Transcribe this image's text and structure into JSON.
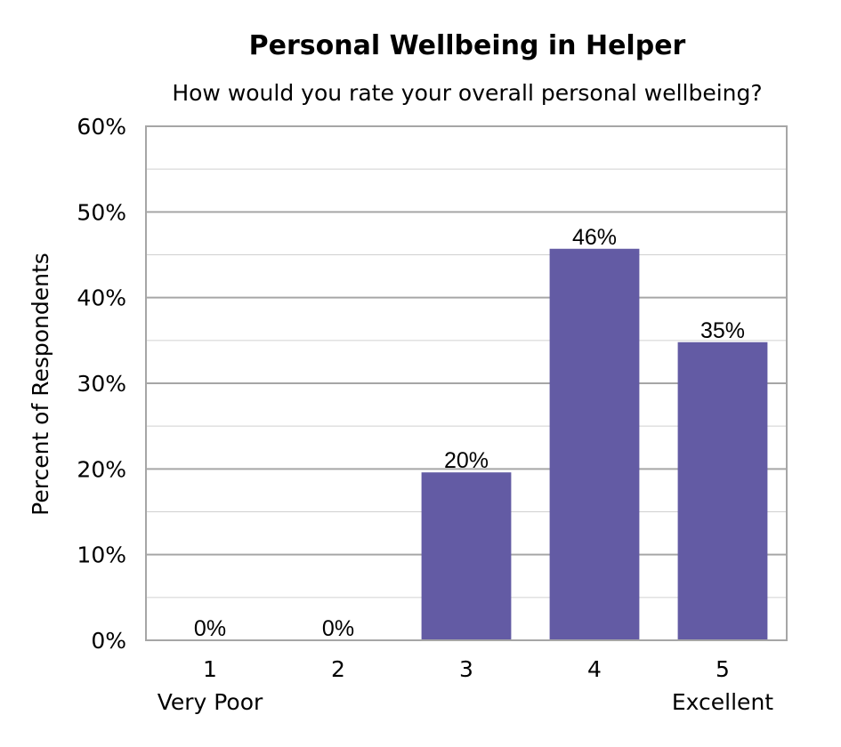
{
  "chart_data": {
    "type": "bar",
    "title": "Personal Wellbeing in Helper",
    "subtitle": "How would you rate your overall personal wellbeing?",
    "ylabel": "Percent of Respondents",
    "xlabel": "",
    "categories": [
      "1",
      "2",
      "3",
      "4",
      "5"
    ],
    "category_sublabels": [
      "Very Poor",
      "",
      "",
      "",
      "Excellent"
    ],
    "values": [
      0,
      0,
      20,
      46,
      35
    ],
    "bar_values_precise": [
      0,
      0,
      19.6,
      45.7,
      34.8
    ],
    "data_labels": [
      "0%",
      "0%",
      "20%",
      "46%",
      "35%"
    ],
    "ylim": [
      0,
      60
    ],
    "yticks": [
      0,
      10,
      20,
      30,
      40,
      50,
      60
    ],
    "ytick_labels": [
      "0%",
      "10%",
      "20%",
      "30%",
      "40%",
      "50%",
      "60%"
    ],
    "grid": true,
    "legend": false,
    "colors": {
      "bar": "#635BA4",
      "grid_major": "#A6A6A6",
      "grid_minor": "#D0D0D0",
      "frame": "#A6A6A6"
    }
  }
}
